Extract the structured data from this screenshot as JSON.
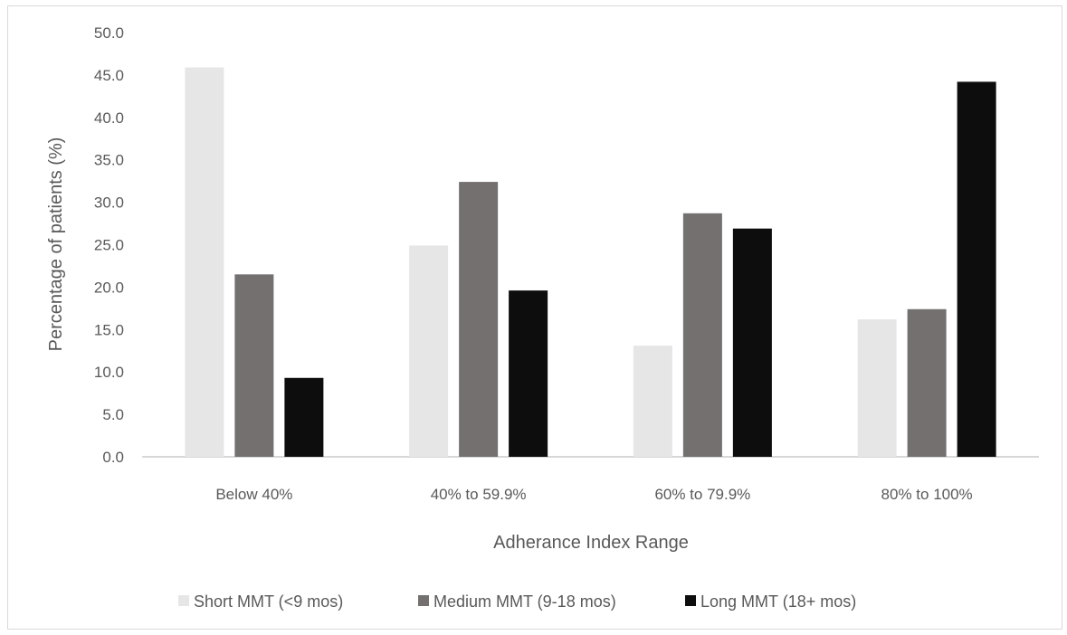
{
  "chart_data": {
    "type": "bar",
    "title": "",
    "xlabel": "Adherance Index Range",
    "ylabel": "Percentage of patients (%)",
    "categories": [
      "Below 40%",
      "40% to 59.9%",
      "60% to 79.9%",
      "80% to 100%"
    ],
    "series": [
      {
        "name": "Short MMT (<9 mos)",
        "values": [
          45.9,
          24.9,
          13.1,
          16.2
        ],
        "color": "#e6e6e6"
      },
      {
        "name": "Medium MMT (9-18 mos)",
        "values": [
          21.5,
          32.4,
          28.7,
          17.4
        ],
        "color": "#747070"
      },
      {
        "name": "Long MMT (18+ mos)",
        "values": [
          9.3,
          19.6,
          26.9,
          44.2
        ],
        "color": "#0d0d0d"
      }
    ],
    "ylim": [
      0,
      50
    ],
    "yticks": [
      "0.0",
      "5.0",
      "10.0",
      "15.0",
      "20.0",
      "25.0",
      "30.0",
      "35.0",
      "40.0",
      "45.0",
      "50.0"
    ],
    "grid": false,
    "legend_position": "bottom"
  }
}
